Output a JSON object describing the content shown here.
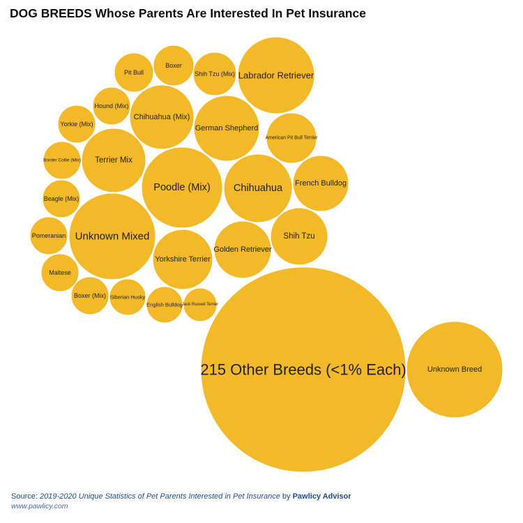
{
  "title": "DOG BREEDS Whose Parents Are Interested In Pet Insurance",
  "source": {
    "prefix": "Source: ",
    "publication": "2019-2020 Unique Statistics of Pet Parents Interested in Pet Insurance",
    "by": " by ",
    "publisher": "Pawlicy Advisor",
    "url": "www.pawlicy.com"
  },
  "colors": {
    "bubble": "#F4B928",
    "label": "#222222"
  },
  "chart_data": {
    "type": "bubble",
    "title": "DOG BREEDS Whose Parents Are Interested In Pet Insurance",
    "series": [
      {
        "category": "215 Other Breeds (<1% Each)",
        "relative_size": 100
      },
      {
        "category": "Unknown Breed",
        "relative_size": 22.6
      },
      {
        "category": "Unknown Mixed",
        "relative_size": 17.5
      },
      {
        "category": "Poodle (Mix)",
        "relative_size": 15.7
      },
      {
        "category": "Chihuahua",
        "relative_size": 11.3
      },
      {
        "category": "Labrador Retriever",
        "relative_size": 14.0
      },
      {
        "category": "German Shepherd",
        "relative_size": 10.0
      },
      {
        "category": "Chihuahua (Mix)",
        "relative_size": 9.7
      },
      {
        "category": "Terrier Mix",
        "relative_size": 9.7
      },
      {
        "category": "Yorkshire Terrier",
        "relative_size": 8.5
      },
      {
        "category": "Golden Retriever",
        "relative_size": 8.0
      },
      {
        "category": "Shih Tzu",
        "relative_size": 7.9
      },
      {
        "category": "French Bulldog",
        "relative_size": 7.4
      },
      {
        "category": "American Pit Bull Terrier",
        "relative_size": 6.0
      },
      {
        "category": "Shih Tzu (Mix)",
        "relative_size": 4.3
      },
      {
        "category": "Boxer",
        "relative_size": 3.9
      },
      {
        "category": "Pit Bull",
        "relative_size": 3.6
      },
      {
        "category": "Hound (Mix)",
        "relative_size": 3.5
      },
      {
        "category": "Yorkie (Mix)",
        "relative_size": 3.5
      },
      {
        "category": "Border Collie (Mix)",
        "relative_size": 3.4
      },
      {
        "category": "Beagle (Mix)",
        "relative_size": 3.4
      },
      {
        "category": "Pomeranian",
        "relative_size": 3.4
      },
      {
        "category": "Maltese",
        "relative_size": 3.4
      },
      {
        "category": "Boxer (Mix)",
        "relative_size": 3.4
      },
      {
        "category": "Siberian Husky",
        "relative_size": 3.2
      },
      {
        "category": "English Bulldog",
        "relative_size": 3.2
      },
      {
        "category": "Jack Russell Terrier",
        "relative_size": 2.9
      }
    ]
  }
}
